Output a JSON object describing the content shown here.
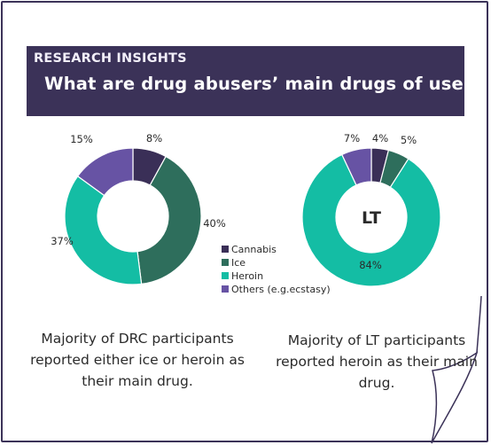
{
  "header": {
    "kicker": "RESEARCH INSIGHTS",
    "title": "What are drug abusers’ main drugs of use?"
  },
  "chart_data": [
    {
      "type": "pie",
      "title": "",
      "center_label": "",
      "categories": [
        "Cannabis",
        "Ice",
        "Heroin",
        "Others (e.g.ecstasy)"
      ],
      "values": [
        8,
        40,
        37,
        15
      ],
      "value_labels": [
        "8%",
        "40%",
        "37%",
        "15%"
      ],
      "colors": [
        "#3a2f57",
        "#2e6e5c",
        "#14bda4",
        "#6753a4"
      ]
    },
    {
      "type": "pie",
      "title": "",
      "center_label": "LT",
      "categories": [
        "Cannabis",
        "Ice",
        "Heroin",
        "Others (e.g.ecstasy)"
      ],
      "values": [
        4,
        5,
        84,
        7
      ],
      "value_labels": [
        "4%",
        "5%",
        "84%",
        "7%"
      ],
      "colors": [
        "#3a2f57",
        "#2e6e5c",
        "#14bda4",
        "#6753a4"
      ]
    }
  ],
  "legend": {
    "placement": "center",
    "items": [
      {
        "label": "Cannabis",
        "color": "#3a2f57"
      },
      {
        "label": "Ice",
        "color": "#2e6e5c"
      },
      {
        "label": "Heroin",
        "color": "#14bda4"
      },
      {
        "label": "Others (e.g.ecstasy)",
        "color": "#6753a4"
      }
    ]
  },
  "captions": {
    "left": "Majority of DRC participants reported either ice or heroin as their main drug.",
    "right": "Majority of LT participants reported heroin as their main drug."
  },
  "colors": {
    "banner": "#3b3258",
    "frame": "#3b3258"
  }
}
